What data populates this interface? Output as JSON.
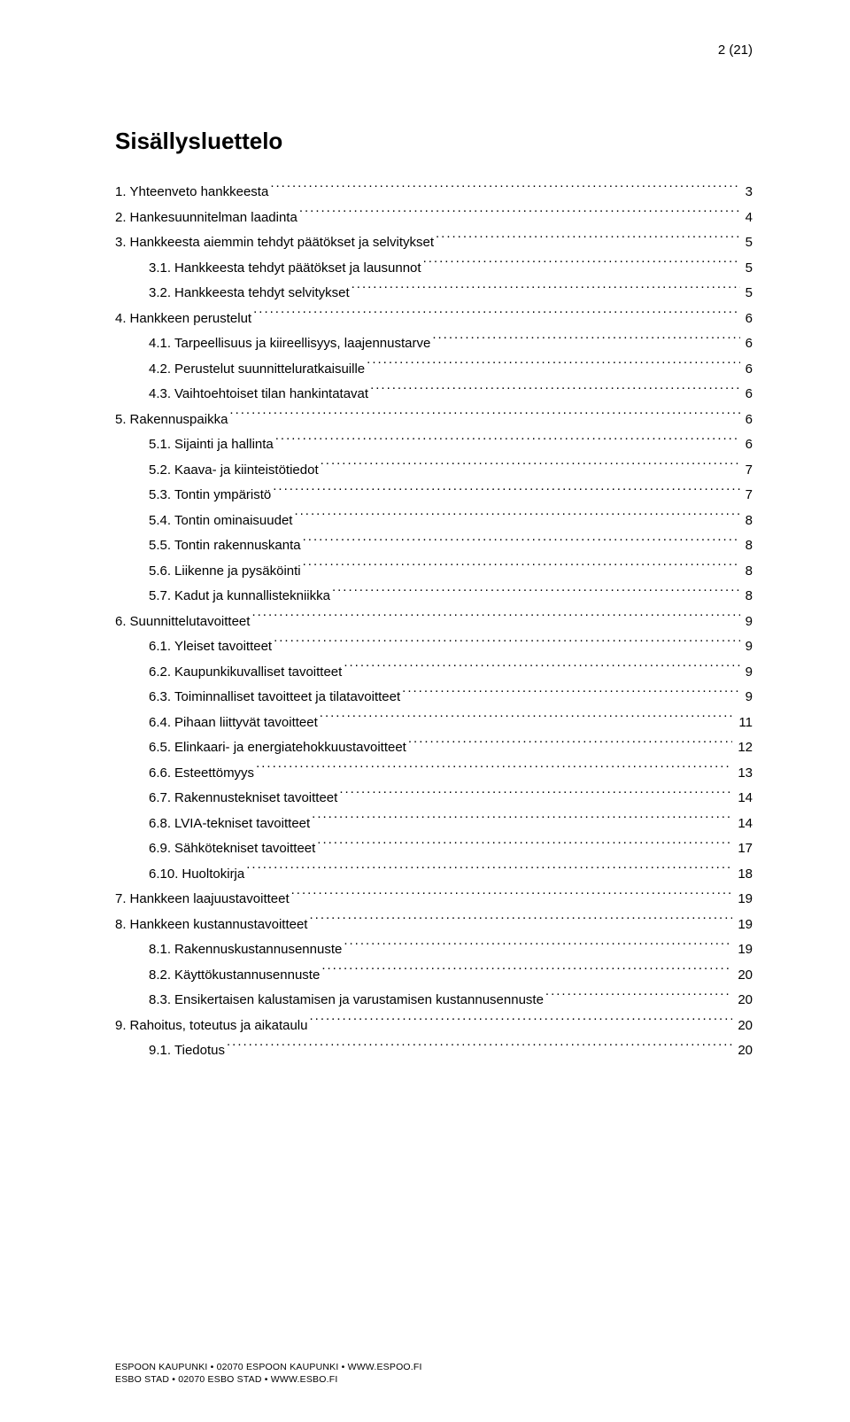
{
  "pageNumber": "2 (21)",
  "tocTitle": "Sisällysluettelo",
  "entries": [
    {
      "level": 1,
      "num": "1.",
      "text": "Yhteenveto hankkeesta",
      "page": "3"
    },
    {
      "level": 1,
      "num": "2.",
      "text": "Hankesuunnitelman laadinta",
      "page": "4"
    },
    {
      "level": 1,
      "num": "3.",
      "text": "Hankkeesta aiemmin tehdyt päätökset ja selvitykset",
      "page": "5"
    },
    {
      "level": 2,
      "num": "3.1.",
      "text": "Hankkeesta tehdyt päätökset ja lausunnot",
      "page": "5"
    },
    {
      "level": 2,
      "num": "3.2.",
      "text": "Hankkeesta tehdyt selvitykset",
      "page": "5"
    },
    {
      "level": 1,
      "num": "4.",
      "text": "Hankkeen perustelut",
      "page": "6"
    },
    {
      "level": 2,
      "num": "4.1.",
      "text": "Tarpeellisuus ja kiireellisyys, laajennustarve",
      "page": "6"
    },
    {
      "level": 2,
      "num": "4.2.",
      "text": "Perustelut suunnitteluratkaisuille",
      "page": "6"
    },
    {
      "level": 2,
      "num": "4.3.",
      "text": "Vaihtoehtoiset tilan hankintatavat",
      "page": "6"
    },
    {
      "level": 1,
      "num": "5.",
      "text": "Rakennuspaikka",
      "page": "6"
    },
    {
      "level": 2,
      "num": "5.1.",
      "text": "Sijainti ja hallinta",
      "page": "6"
    },
    {
      "level": 2,
      "num": "5.2.",
      "text": "Kaava- ja kiinteistötiedot",
      "page": "7"
    },
    {
      "level": 2,
      "num": "5.3.",
      "text": "Tontin ympäristö",
      "page": "7"
    },
    {
      "level": 2,
      "num": "5.4.",
      "text": "Tontin ominaisuudet",
      "page": "8"
    },
    {
      "level": 2,
      "num": "5.5.",
      "text": "Tontin rakennuskanta",
      "page": "8"
    },
    {
      "level": 2,
      "num": "5.6.",
      "text": "Liikenne ja pysäköinti",
      "page": "8"
    },
    {
      "level": 2,
      "num": "5.7.",
      "text": "Kadut ja kunnallistekniikka",
      "page": "8"
    },
    {
      "level": 1,
      "num": "6.",
      "text": "Suunnittelutavoitteet",
      "page": "9"
    },
    {
      "level": 2,
      "num": "6.1.",
      "text": "Yleiset tavoitteet",
      "page": "9"
    },
    {
      "level": 2,
      "num": "6.2.",
      "text": "Kaupunkikuvalliset tavoitteet",
      "page": "9"
    },
    {
      "level": 2,
      "num": "6.3.",
      "text": "Toiminnalliset tavoitteet ja tilatavoitteet",
      "page": "9"
    },
    {
      "level": 2,
      "num": "6.4.",
      "text": "Pihaan liittyvät tavoitteet",
      "page": "11"
    },
    {
      "level": 2,
      "num": "6.5.",
      "text": "Elinkaari- ja energiatehokkuustavoitteet",
      "page": "12"
    },
    {
      "level": 2,
      "num": "6.6.",
      "text": "Esteettömyys",
      "page": "13"
    },
    {
      "level": 2,
      "num": "6.7.",
      "text": "Rakennustekniset tavoitteet",
      "page": "14"
    },
    {
      "level": 2,
      "num": "6.8.",
      "text": "LVIA-tekniset tavoitteet",
      "page": "14"
    },
    {
      "level": 2,
      "num": "6.9.",
      "text": "Sähkötekniset tavoitteet",
      "page": "17"
    },
    {
      "level": 2,
      "num": "6.10.",
      "text": "Huoltokirja",
      "page": "18"
    },
    {
      "level": 1,
      "num": "7.",
      "text": "Hankkeen laajuustavoitteet",
      "page": "19"
    },
    {
      "level": 1,
      "num": "8.",
      "text": "Hankkeen kustannustavoitteet",
      "page": "19"
    },
    {
      "level": 2,
      "num": "8.1.",
      "text": "Rakennuskustannusennuste",
      "page": "19"
    },
    {
      "level": 2,
      "num": "8.2.",
      "text": "Käyttökustannusennuste",
      "page": "20"
    },
    {
      "level": 2,
      "num": "8.3.",
      "text": "Ensikertaisen kalustamisen ja varustamisen kustannusennuste",
      "page": "20"
    },
    {
      "level": 1,
      "num": "9.",
      "text": "Rahoitus, toteutus ja aikataulu",
      "page": "20"
    },
    {
      "level": 2,
      "num": "9.1.",
      "text": "Tiedotus",
      "page": "20"
    }
  ],
  "footer": {
    "line1": "ESPOON KAUPUNKI • 02070 ESPOON KAUPUNKI • WWW.ESPOO.FI",
    "line2": "ESBO STAD • 02070 ESBO STAD • WWW.ESBO.FI"
  }
}
